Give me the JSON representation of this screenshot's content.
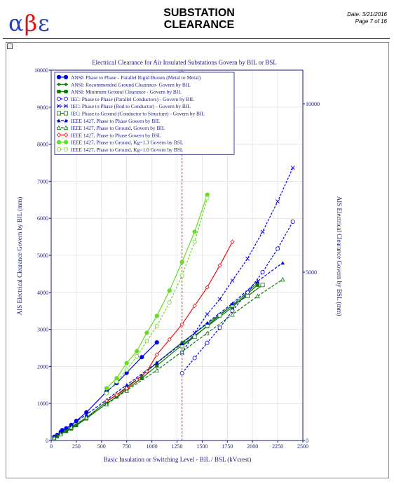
{
  "header": {
    "logo": {
      "alpha": "α",
      "beta": "β",
      "epsilon": "ε"
    },
    "title_line1": "SUBSTATION",
    "title_line2": "CLEARANCE",
    "date": "Date: 3/21/2016",
    "page": "Page 7 of 16"
  },
  "chart_data": {
    "type": "line",
    "title": "Electrical Clearance for Air Insulated Substations Govern by BIL or BSL",
    "xlabel": "Basic Insulation or Switching Level - BIL / BSL (kVcrest)",
    "ylabel": "AIS Electrical Clearance Govern by BIL (mm)",
    "y2label": "AIS Electrical Clearance Govern by BSL (mm)",
    "marker_label": "BIL",
    "marker_x": 1300,
    "xlim": [
      0,
      2500
    ],
    "ylim": [
      0,
      10000
    ],
    "y2lim": [
      0,
      11000
    ],
    "xticks": [
      0,
      250,
      500,
      750,
      1000,
      1250,
      1500,
      1750,
      2000,
      2250,
      2500
    ],
    "yticks": [
      0,
      1000,
      2000,
      3000,
      4000,
      5000,
      6000,
      7000,
      8000,
      9000,
      10000
    ],
    "y2ticks": [
      0,
      5000,
      10000
    ],
    "grid": true,
    "legend_position": "top-left",
    "series": [
      {
        "name": "ANSI: Phase to Phase - Parallel Rigid Busses (Metal to Metal)",
        "color": "#0000ee",
        "marker": "circle",
        "dash": "",
        "axis": "left",
        "x": [
          30,
          60,
          95,
          110,
          150,
          200,
          250,
          350,
          550,
          650,
          750,
          900,
          1050
        ],
        "y": [
          100,
          150,
          230,
          280,
          330,
          420,
          530,
          760,
          1320,
          1550,
          1830,
          2250,
          2650
        ]
      },
      {
        "name": "ANSI: Recommended Ground Clearance- Govern by BIL",
        "color": "#117711",
        "marker": "diamond",
        "dash": "",
        "axis": "left",
        "x": [
          30,
          60,
          95,
          150,
          200,
          250,
          350,
          550,
          650,
          750,
          900,
          1050,
          1300,
          1550,
          1800,
          2050
        ],
        "y": [
          80,
          120,
          180,
          270,
          340,
          430,
          620,
          1050,
          1230,
          1450,
          1750,
          2100,
          2650,
          3150,
          3650,
          4250
        ]
      },
      {
        "name": "ANSI: Minimum Ground Clearance - Govern by BIL",
        "color": "#117711",
        "marker": "square-filled",
        "dash": "",
        "axis": "left",
        "x": [
          30,
          60,
          95,
          150,
          200,
          250,
          350,
          550,
          650,
          750,
          900,
          1050,
          1300,
          1550,
          1800,
          2050
        ],
        "y": [
          70,
          110,
          170,
          250,
          320,
          410,
          590,
          1000,
          1180,
          1380,
          1680,
          2020,
          2580,
          3080,
          3600,
          4200
        ]
      },
      {
        "name": "IEC: Phase to Phase  (Parallel Conductors) - Govern by BIL",
        "color": "#0000ee",
        "marker": "circle-open",
        "dash": "3,2",
        "axis": "right",
        "x": [
          1300,
          1425,
          1550,
          1675,
          1800,
          1950,
          2100,
          2250,
          2400
        ],
        "y": [
          2000,
          2450,
          2900,
          3350,
          3850,
          4400,
          5000,
          5700,
          6500
        ]
      },
      {
        "name": "IEC: Phase to Phase  (Rod to Conductor) - Govern by BIL",
        "color": "#0000ee",
        "marker": "x",
        "dash": "3,2",
        "axis": "right",
        "x": [
          1300,
          1425,
          1550,
          1675,
          1800,
          1950,
          2100,
          2250,
          2400
        ],
        "y": [
          2600,
          3200,
          3750,
          4200,
          4750,
          5400,
          6200,
          7100,
          8100
        ]
      },
      {
        "name": "IEC: Phase to Ground (Conductor to Structure) - Govern by BIL",
        "color": "#117711",
        "marker": "square-open",
        "dash": "",
        "axis": "left",
        "x": [
          1300,
          1425,
          1550,
          1675,
          1800,
          1950,
          2100
        ],
        "y": [
          2550,
          2800,
          3100,
          3380,
          3650,
          3900,
          4200
        ]
      },
      {
        "name": "IEEE 1427, Phase to Phase Govern by BIL",
        "color": "#0000ee",
        "marker": "triangle",
        "dash": "4,2",
        "axis": "left",
        "x": [
          30,
          95,
          200,
          350,
          550,
          750,
          1050,
          1300,
          1550,
          1800,
          2050,
          2300
        ],
        "y": [
          90,
          200,
          420,
          700,
          1100,
          1500,
          2100,
          2620,
          3180,
          3700,
          4300,
          4800
        ]
      },
      {
        "name": "IEEE 1427, Phase to Ground, Govern by BIL",
        "color": "#117711",
        "marker": "triangle-open",
        "dash": "4,2",
        "axis": "left",
        "x": [
          30,
          95,
          200,
          350,
          550,
          750,
          1050,
          1300,
          1550,
          1800,
          2050,
          2300
        ],
        "y": [
          70,
          170,
          360,
          620,
          980,
          1350,
          1900,
          2400,
          2900,
          3400,
          3900,
          4350
        ]
      },
      {
        "name": "IEEE 1427, Phase to Phase Govern by BSL",
        "color": "#ee1111",
        "marker": "diamond-open",
        "dash": "",
        "axis": "right",
        "x": [
          550,
          650,
          750,
          850,
          950,
          1050,
          1175,
          1300,
          1425,
          1550,
          1675,
          1800
        ],
        "y": [
          1180,
          1350,
          1550,
          1800,
          2050,
          2550,
          3000,
          3450,
          4000,
          4550,
          5200,
          5900
        ]
      },
      {
        "name": "IEEE 1427, Phase to Ground, Kg=1.3  Govern by BSL",
        "color": "#66dd22",
        "marker": "circle-filled",
        "dash": "",
        "axis": "right",
        "x": [
          550,
          650,
          750,
          850,
          950,
          1050,
          1175,
          1300,
          1425,
          1550
        ],
        "y": [
          1550,
          1850,
          2300,
          2650,
          3200,
          3700,
          4450,
          5300,
          6200,
          7300
        ]
      },
      {
        "name": "IEEE 1427, Phase to Ground, Kg=1.0  Govern by BSL",
        "color": "#66dd22",
        "marker": "circle-open",
        "dash": "3,2",
        "axis": "right",
        "x": [
          550,
          650,
          750,
          850,
          950,
          1050,
          1175,
          1300,
          1425,
          1550
        ],
        "y": [
          1400,
          1750,
          2100,
          2500,
          2950,
          3400,
          4100,
          4900,
          5900,
          7200
        ]
      }
    ]
  }
}
